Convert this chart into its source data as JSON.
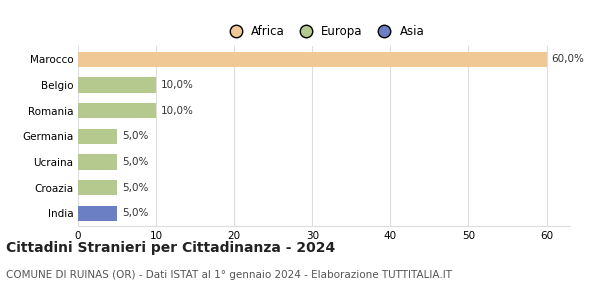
{
  "categories": [
    "Marocco",
    "Belgio",
    "Romania",
    "Germania",
    "Ucraina",
    "Croazia",
    "India"
  ],
  "values": [
    60.0,
    10.0,
    10.0,
    5.0,
    5.0,
    5.0,
    5.0
  ],
  "labels": [
    "60,0%",
    "10,0%",
    "10,0%",
    "5,0%",
    "5,0%",
    "5,0%",
    "5,0%"
  ],
  "colors": [
    "#f0c896",
    "#b5c98e",
    "#b5c98e",
    "#b5c98e",
    "#b5c98e",
    "#b5c98e",
    "#6b7fc4"
  ],
  "legend_entries": [
    {
      "label": "Africa",
      "color": "#f0c896"
    },
    {
      "label": "Europa",
      "color": "#b5c98e"
    },
    {
      "label": "Asia",
      "color": "#6b7fc4"
    }
  ],
  "xlim": [
    0,
    63
  ],
  "xticks": [
    0,
    10,
    20,
    30,
    40,
    50,
    60
  ],
  "title": "Cittadini Stranieri per Cittadinanza - 2024",
  "subtitle": "COMUNE DI RUINAS (OR) - Dati ISTAT al 1° gennaio 2024 - Elaborazione TUTTITALIA.IT",
  "title_fontsize": 10,
  "subtitle_fontsize": 7.5,
  "label_fontsize": 7.5,
  "tick_fontsize": 7.5,
  "legend_fontsize": 8.5,
  "bar_height": 0.6,
  "background_color": "#ffffff",
  "grid_color": "#dddddd"
}
